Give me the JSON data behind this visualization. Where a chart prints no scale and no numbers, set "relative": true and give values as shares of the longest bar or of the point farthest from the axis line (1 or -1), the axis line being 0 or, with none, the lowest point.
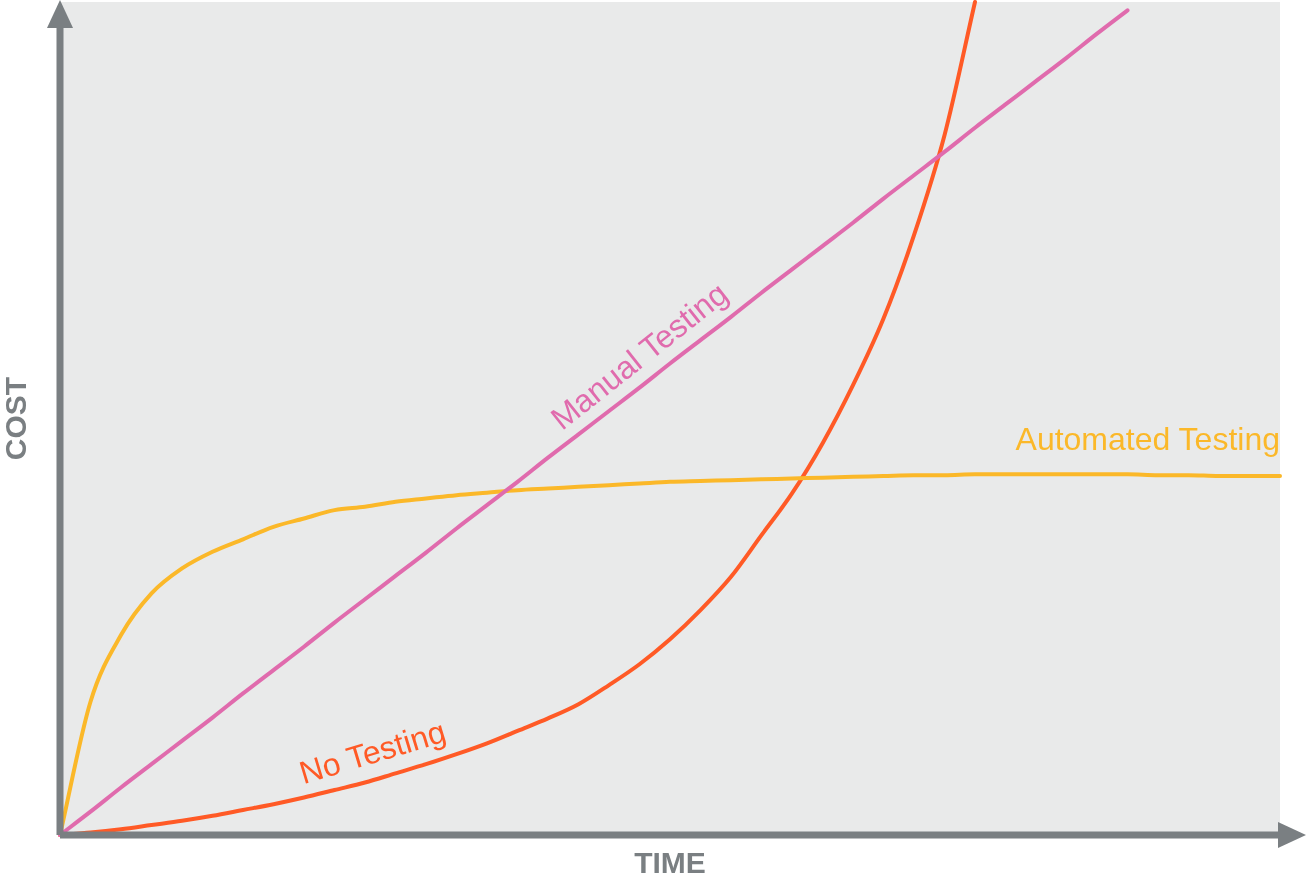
{
  "chart_data": {
    "type": "line",
    "relative": true,
    "xlabel": "TIME",
    "ylabel": "COST",
    "legend": false,
    "marker": "none",
    "categories": [
      null,
      null,
      null,
      null,
      null,
      null,
      null,
      null,
      null,
      null,
      null,
      null,
      null,
      null,
      null,
      null,
      null,
      null,
      null,
      null,
      null,
      null,
      null,
      null,
      null,
      null,
      null,
      null,
      null,
      null,
      null,
      null,
      null,
      null,
      null,
      null,
      null,
      null,
      null,
      null,
      null
    ],
    "series": [
      {
        "name": "Manual Testing",
        "color": "#e06bad",
        "values": [
          0,
          0.028,
          0.057,
          0.085,
          0.113,
          0.141,
          0.17,
          0.198,
          0.226,
          0.255,
          0.283,
          0.311,
          0.339,
          0.368,
          0.396,
          0.424,
          0.453,
          0.481,
          0.509,
          0.537,
          0.566,
          0.594,
          0.622,
          0.651,
          0.679,
          0.707,
          0.735,
          0.764,
          0.792,
          0.82,
          0.849,
          0.877,
          0.905,
          0.933,
          0.962,
          0.99,
          null,
          null,
          null,
          null,
          null
        ]
      },
      {
        "name": "Automated Testing",
        "color": "#fbb829",
        "values": [
          0,
          0.16,
          0.24,
          0.29,
          0.32,
          0.34,
          0.355,
          0.37,
          0.38,
          0.39,
          0.394,
          0.4,
          0.404,
          0.408,
          0.411,
          0.414,
          0.416,
          0.418,
          0.42,
          0.422,
          0.424,
          0.425,
          0.426,
          0.427,
          0.428,
          0.429,
          0.43,
          0.431,
          0.432,
          0.432,
          0.433,
          0.433,
          0.433,
          0.433,
          0.433,
          0.433,
          0.432,
          0.432,
          0.431,
          0.431,
          0.431
        ]
      },
      {
        "name": "No Testing",
        "color": "#ff5a26",
        "values": [
          0,
          0.003,
          0.007,
          0.012,
          0.017,
          0.023,
          0.03,
          0.037,
          0.045,
          0.054,
          0.063,
          0.074,
          0.085,
          0.097,
          0.11,
          0.125,
          0.14,
          0.157,
          0.18,
          0.205,
          0.235,
          0.27,
          0.31,
          0.36,
          0.41,
          0.47,
          0.54,
          0.62,
          0.72,
          0.84,
          1.0,
          null,
          null,
          null,
          null,
          null,
          null,
          null,
          null,
          null,
          null
        ]
      }
    ]
  }
}
